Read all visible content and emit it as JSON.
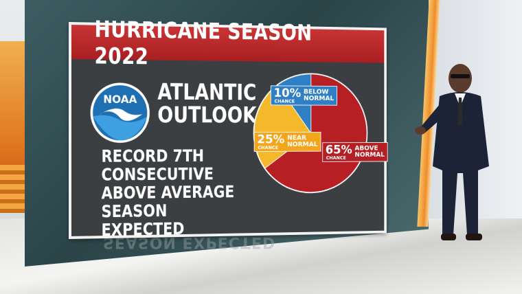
{
  "graphic": {
    "title": "HURRICANE SEASON 2022",
    "logo_text": "NOAA",
    "outlook_line1": "ATLANTIC",
    "outlook_line2": "OUTLOOK",
    "record_lines": [
      "RECORD 7TH",
      "CONSECUTIVE",
      "ABOVE AVERAGE",
      "SEASON EXPECTED"
    ],
    "reflection_text": "SEASON EXPECTED"
  },
  "chart_data": {
    "type": "pie",
    "title": "",
    "slices": [
      {
        "label_line1": "ABOVE",
        "label_line2": "NORMAL",
        "value": 65,
        "pct_text": "65%",
        "chance_text": "CHANCE",
        "color": "#b71f24"
      },
      {
        "label_line1": "NEAR",
        "label_line2": "NORMAL",
        "value": 25,
        "pct_text": "25%",
        "chance_text": "CHANCE",
        "color": "#f5b82a"
      },
      {
        "label_line1": "BELOW",
        "label_line2": "NORMAL",
        "value": 10,
        "pct_text": "10%",
        "chance_text": "CHANCE",
        "color": "#2f7fc4"
      }
    ],
    "start_angle_deg": 0,
    "legend": "none"
  },
  "colors": {
    "title_red": "#b8282a",
    "panel_bg": "#3c3f42",
    "noaa_blue": "#1f6fb3"
  }
}
